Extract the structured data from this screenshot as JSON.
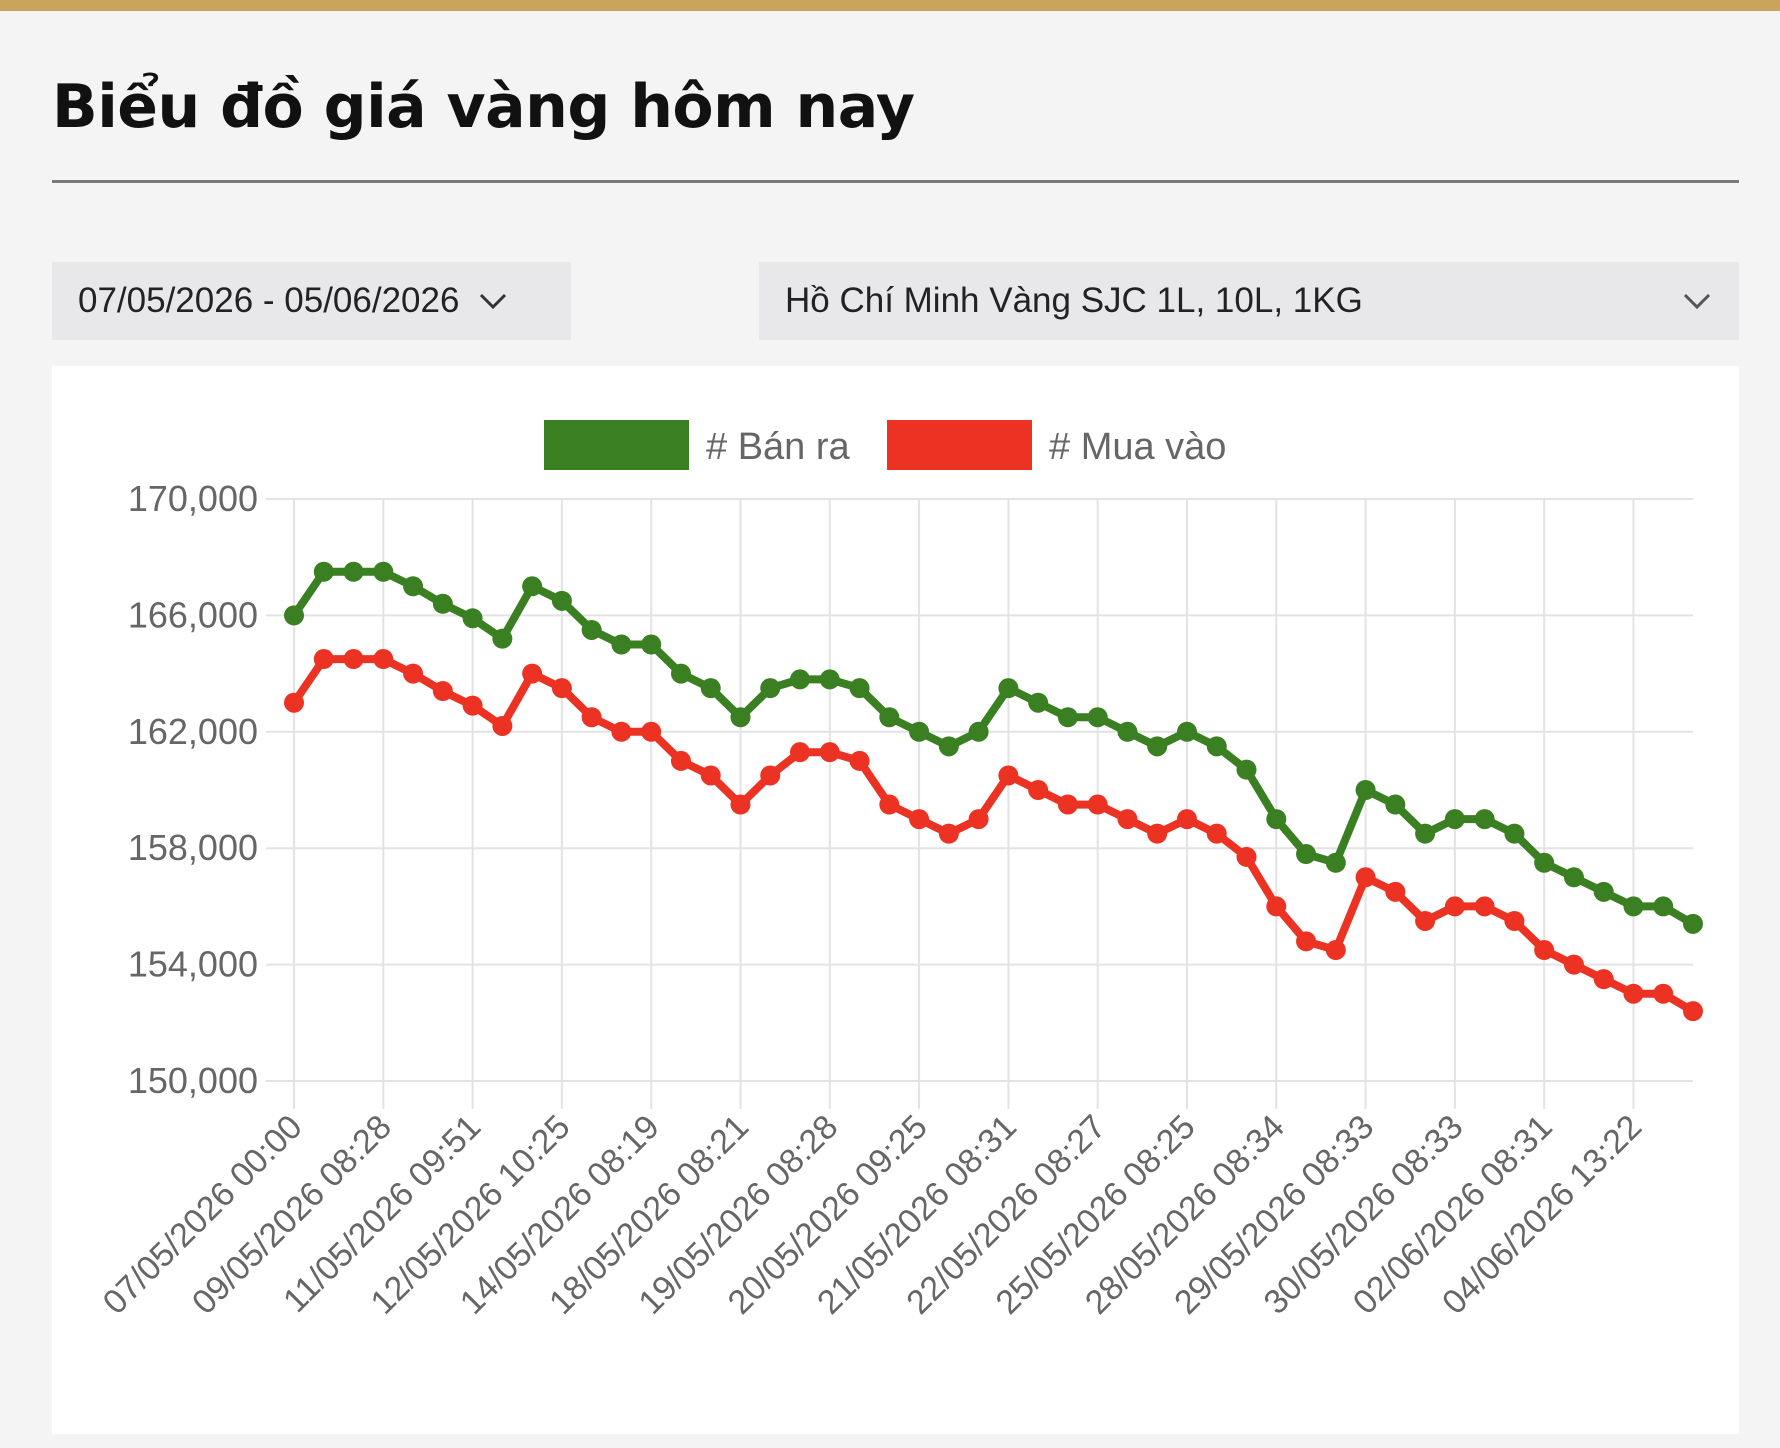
{
  "header": {
    "title": "Biểu đồ giá vàng hôm nay"
  },
  "filters": {
    "date_range": "07/05/2026 - 05/06/2026",
    "product": "Hồ Chí Minh Vàng SJC 1L, 10L, 1KG"
  },
  "icons": {
    "dropdown": "chevron-down-icon"
  },
  "colors": {
    "accent": "#c9a45a",
    "sell": "#3a7f21",
    "buy": "#ec3323",
    "grid": "#e3e3e3"
  },
  "chart_data": {
    "type": "line",
    "title": "",
    "xlabel": "",
    "ylabel": "",
    "ylim": [
      150000,
      170000
    ],
    "yticks": [
      150000,
      154000,
      158000,
      162000,
      166000,
      170000
    ],
    "ytick_labels": [
      "150,000",
      "154,000",
      "158,000",
      "162,000",
      "166,000",
      "170,000"
    ],
    "grid": true,
    "legend_position": "top-center",
    "x_tick_labels": [
      "07/05/2026 00:00",
      "09/05/2026 08:28",
      "11/05/2026 09:51",
      "12/05/2026 10:25",
      "14/05/2026 08:19",
      "18/05/2026 08:21",
      "19/05/2026 08:28",
      "20/05/2026 09:25",
      "21/05/2026 08:31",
      "22/05/2026 08:27",
      "25/05/2026 08:25",
      "28/05/2026 08:34",
      "29/05/2026 08:33",
      "30/05/2026 08:33",
      "02/06/2026 08:31",
      "04/06/2026 13:22"
    ],
    "x_tick_every": 3,
    "series": [
      {
        "name": "# Bán ra",
        "color": "#3a7f21",
        "values": [
          166000,
          167500,
          167500,
          167500,
          167000,
          166400,
          165900,
          165200,
          167000,
          166500,
          165500,
          165000,
          165000,
          164000,
          163500,
          162500,
          163500,
          163800,
          163800,
          163500,
          162500,
          162000,
          161500,
          162000,
          163500,
          163000,
          162500,
          162500,
          162000,
          161500,
          162000,
          161500,
          160700,
          159000,
          157800,
          157500,
          160000,
          159500,
          158500,
          159000,
          159000,
          158500,
          157500,
          157000,
          156500,
          156000,
          156000,
          155400
        ]
      },
      {
        "name": "# Mua vào",
        "color": "#ec3323",
        "values": [
          163000,
          164500,
          164500,
          164500,
          164000,
          163400,
          162900,
          162200,
          164000,
          163500,
          162500,
          162000,
          162000,
          161000,
          160500,
          159500,
          160500,
          161300,
          161300,
          161000,
          159500,
          159000,
          158500,
          159000,
          160500,
          160000,
          159500,
          159500,
          159000,
          158500,
          159000,
          158500,
          157700,
          156000,
          154800,
          154500,
          157000,
          156500,
          155500,
          156000,
          156000,
          155500,
          154500,
          154000,
          153500,
          153000,
          153000,
          152400
        ]
      }
    ]
  }
}
